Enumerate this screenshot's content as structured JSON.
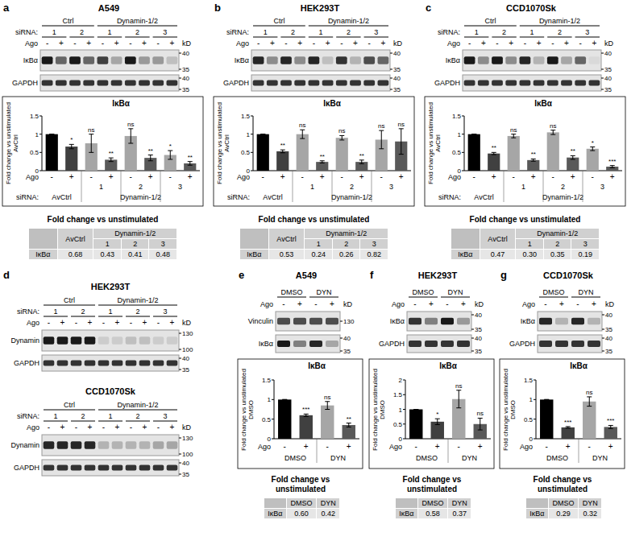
{
  "chart_data": [
    {
      "type": "bar",
      "panel": "a",
      "cell_line": "A549",
      "title": "IκBα",
      "y_label": "Fold change vs unstimulated AvCtrl",
      "category_label": "Ago",
      "group_label": "siRNA:",
      "categories": [
        "-",
        "+",
        "-",
        "+",
        "-",
        "+",
        "-",
        "+"
      ],
      "x_groups": [
        {
          "label": "AvCtrl"
        },
        {
          "label": "Dynamin-1/2",
          "sub": [
            "1",
            "2",
            "3"
          ]
        }
      ],
      "values": [
        1,
        0.66,
        0.75,
        0.3,
        0.95,
        0.35,
        0.43,
        0.2
      ],
      "errors": [
        0,
        0.06,
        0.25,
        0.05,
        0.2,
        0.08,
        0.12,
        0.05
      ],
      "annotations": [
        null,
        "*",
        "ns",
        "**",
        "ns",
        "**",
        "*",
        "**"
      ],
      "colors": [
        "#000000",
        "#404040",
        "#a6a6a6",
        "#595959",
        "#a6a6a6",
        "#595959",
        "#a6a6a6",
        "#595959"
      ],
      "ylim": [
        0,
        1.5
      ],
      "yticks": [
        0,
        0.5,
        1,
        1.5
      ],
      "blot": {
        "siRNA_label": "siRNA:",
        "groups": [
          {
            "label": "Ctrl",
            "sub": [
              "1",
              "2"
            ]
          },
          {
            "label": "Dynamin-1/2",
            "sub": [
              "1",
              "2",
              "3"
            ]
          }
        ],
        "lane_label": "Ago",
        "lanes": [
          "-",
          "+",
          "-",
          "+",
          "-",
          "+",
          "-",
          "+",
          "-",
          "+"
        ],
        "kd_unit": "kD",
        "rows": [
          {
            "label": "IκBα",
            "kd": [
              40,
              35
            ],
            "intensities": [
              0.9,
              0.6,
              0.9,
              0.6,
              0.75,
              0.35,
              0.9,
              0.4,
              0.4,
              0.25
            ]
          },
          {
            "label": "GAPDH",
            "kd": [
              40,
              35
            ],
            "intensities": [
              0.8,
              0.8,
              0.8,
              0.8,
              0.8,
              0.8,
              0.8,
              0.8,
              0.8,
              0.8
            ]
          }
        ]
      },
      "table": {
        "title": "Fold change vs unstimulated",
        "row_label": "IκBα",
        "columns": [
          {
            "label": "AvCtrl"
          },
          {
            "label": "Dynamin-1/2",
            "sub": [
              "1",
              "2",
              "3"
            ]
          }
        ],
        "values": [
          "0.68",
          "0.43",
          "0.41",
          "0.48"
        ]
      }
    },
    {
      "type": "bar",
      "panel": "b",
      "cell_line": "HEK293T",
      "title": "IκBα",
      "y_label": "Fold change vs unstimulated AvCtrl",
      "category_label": "Ago",
      "group_label": "siRNA:",
      "categories": [
        "-",
        "+",
        "-",
        "+",
        "-",
        "+",
        "-",
        "+"
      ],
      "x_groups": [
        {
          "label": "AvCtrl"
        },
        {
          "label": "Dynamin-1/2",
          "sub": [
            "1",
            "2",
            "3"
          ]
        }
      ],
      "values": [
        1,
        0.53,
        1,
        0.24,
        0.9,
        0.24,
        0.85,
        0.8
      ],
      "errors": [
        0,
        0.04,
        0.12,
        0.03,
        0.06,
        0.05,
        0.25,
        0.35
      ],
      "annotations": [
        null,
        "**",
        "ns",
        "**",
        "ns",
        "**",
        "ns",
        "ns"
      ],
      "colors": [
        "#000000",
        "#404040",
        "#a6a6a6",
        "#595959",
        "#a6a6a6",
        "#595959",
        "#a6a6a6",
        "#595959"
      ],
      "ylim": [
        0,
        1.5
      ],
      "yticks": [
        0,
        0.5,
        1,
        1.5
      ],
      "blot": {
        "siRNA_label": "siRNA:",
        "groups": [
          {
            "label": "Ctrl",
            "sub": [
              "1",
              "2"
            ]
          },
          {
            "label": "Dynamin-1/2",
            "sub": [
              "1",
              "2",
              "3"
            ]
          }
        ],
        "lane_label": "Ago",
        "lanes": [
          "-",
          "+",
          "-",
          "+",
          "-",
          "+",
          "-",
          "+",
          "-",
          "+"
        ],
        "kd_unit": "kD",
        "rows": [
          {
            "label": "IκBα",
            "kd": [
              40,
              35
            ],
            "intensities": [
              0.85,
              0.45,
              0.85,
              0.45,
              0.85,
              0.25,
              0.8,
              0.3,
              0.7,
              0.6
            ]
          },
          {
            "label": "GAPDH",
            "kd": [
              40,
              35
            ],
            "intensities": [
              0.8,
              0.8,
              0.8,
              0.8,
              0.8,
              0.8,
              0.8,
              0.8,
              0.8,
              0.8
            ]
          }
        ]
      },
      "table": {
        "title": "Fold change vs unstimulated",
        "row_label": "IκBα",
        "columns": [
          {
            "label": "AvCtrl"
          },
          {
            "label": "Dynamin-1/2",
            "sub": [
              "1",
              "2",
              "3"
            ]
          }
        ],
        "values": [
          "0.53",
          "0.24",
          "0.26",
          "0.82"
        ]
      }
    },
    {
      "type": "bar",
      "panel": "c",
      "cell_line": "CCD1070Sk",
      "title": "IκBα",
      "y_label": "Fold change vs unstimulated AvCtrl",
      "category_label": "Ago",
      "group_label": "siRNA:",
      "categories": [
        "-",
        "+",
        "-",
        "+",
        "-",
        "+",
        "-",
        "+"
      ],
      "x_groups": [
        {
          "label": "AvCtrl"
        },
        {
          "label": "Dynamin-1/2",
          "sub": [
            "1",
            "2",
            "3"
          ]
        }
      ],
      "values": [
        1,
        0.47,
        0.95,
        0.29,
        1.05,
        0.36,
        0.6,
        0.11
      ],
      "errors": [
        0,
        0.03,
        0.05,
        0.03,
        0.06,
        0.05,
        0.05,
        0.03
      ],
      "annotations": [
        null,
        "**",
        "ns",
        "**",
        "ns",
        "**",
        "*",
        "***"
      ],
      "colors": [
        "#000000",
        "#404040",
        "#a6a6a6",
        "#595959",
        "#a6a6a6",
        "#595959",
        "#a6a6a6",
        "#595959"
      ],
      "ylim": [
        0,
        1.5
      ],
      "yticks": [
        0,
        0.5,
        1,
        1.5
      ],
      "blot": {
        "siRNA_label": "siRNA:",
        "groups": [
          {
            "label": "Ctrl",
            "sub": [
              "1",
              "2"
            ]
          },
          {
            "label": "Dynamin-1/2",
            "sub": [
              "1",
              "2",
              "3"
            ]
          }
        ],
        "lane_label": "Ago",
        "lanes": [
          "-",
          "+",
          "-",
          "+",
          "-",
          "+",
          "-",
          "+",
          "-",
          "+"
        ],
        "kd_unit": "kD",
        "rows": [
          {
            "label": "IκBα",
            "kd": [
              40,
              35
            ],
            "intensities": [
              0.9,
              0.45,
              0.9,
              0.45,
              0.85,
              0.3,
              0.9,
              0.35,
              0.6,
              0.15
            ]
          },
          {
            "label": "GAPDH",
            "kd": [
              40,
              35
            ],
            "intensities": [
              0.8,
              0.8,
              0.8,
              0.8,
              0.8,
              0.8,
              0.8,
              0.8,
              0.8,
              0.8
            ]
          }
        ]
      },
      "table": {
        "title": "Fold change vs unstimulated",
        "row_label": "IκBα",
        "columns": [
          {
            "label": "AvCtrl"
          },
          {
            "label": "Dynamin-1/2",
            "sub": [
              "1",
              "2",
              "3"
            ]
          }
        ],
        "values": [
          "0.47",
          "0.30",
          "0.35",
          "0.19"
        ]
      }
    },
    {
      "type": "bar",
      "panel": "e",
      "cell_line": "A549",
      "title": "IκBα",
      "y_label": "Fold change vs unstimulated DMSO",
      "category_label": "Ago",
      "categories": [
        "-",
        "+",
        "-",
        "+"
      ],
      "x_groups": [
        {
          "label": "DMSO"
        },
        {
          "label": "DYN"
        }
      ],
      "values": [
        1,
        0.6,
        0.85,
        0.35
      ],
      "errors": [
        0,
        0.03,
        0.1,
        0.05
      ],
      "annotations": [
        null,
        "***",
        "ns",
        "**"
      ],
      "colors": [
        "#000000",
        "#404040",
        "#a6a6a6",
        "#595959"
      ],
      "ylim": [
        0,
        1.5
      ],
      "yticks": [
        0,
        0.5,
        1,
        1.5
      ],
      "blot": {
        "groups": [
          {
            "label": "DMSO"
          },
          {
            "label": "DYN"
          }
        ],
        "lane_label": "Ago",
        "lanes": [
          "-",
          "+",
          "-",
          "+"
        ],
        "kd_unit": "kD",
        "rows": [
          {
            "label": "Vinculin",
            "kd": [
              130
            ],
            "intensities": [
              0.7,
              0.7,
              0.7,
              0.7
            ]
          },
          {
            "label": "IκBα",
            "kd": [
              40,
              35
            ],
            "intensities": [
              0.9,
              0.5,
              0.85,
              0.35
            ]
          }
        ]
      },
      "table": {
        "title": "Fold change vs unstimulated",
        "row_label": "IκBα",
        "columns": [
          {
            "label": "DMSO"
          },
          {
            "label": "DYN"
          }
        ],
        "values": [
          "0.60",
          "0.42"
        ]
      }
    },
    {
      "type": "bar",
      "panel": "f",
      "cell_line": "HEK293T",
      "title": "IκBα",
      "y_label": "Fold change vs unstimulated DMSO",
      "category_label": "Ago",
      "categories": [
        "-",
        "+",
        "-",
        "+"
      ],
      "x_groups": [
        {
          "label": "DMSO"
        },
        {
          "label": "DYN"
        }
      ],
      "values": [
        1,
        0.58,
        1.35,
        0.5
      ],
      "errors": [
        0,
        0.1,
        0.3,
        0.2
      ],
      "annotations": [
        null,
        "*",
        "ns",
        "ns"
      ],
      "colors": [
        "#000000",
        "#404040",
        "#a6a6a6",
        "#595959"
      ],
      "ylim": [
        0,
        2
      ],
      "yticks": [
        0,
        0.5,
        1,
        1.5,
        2
      ],
      "blot": {
        "groups": [
          {
            "label": "DMSO"
          },
          {
            "label": "DYN"
          }
        ],
        "lane_label": "Ago",
        "lanes": [
          "-",
          "+",
          "-",
          "+"
        ],
        "kd_unit": "kD",
        "rows": [
          {
            "label": "IκBα",
            "kd": [
              40,
              35
            ],
            "intensities": [
              0.8,
              0.5,
              0.9,
              0.4
            ]
          },
          {
            "label": "GAPDH",
            "kd": [
              40,
              35
            ],
            "intensities": [
              0.8,
              0.8,
              0.8,
              0.8
            ]
          }
        ]
      },
      "table": {
        "title": "Fold change vs unstimulated",
        "row_label": "IκBα",
        "columns": [
          {
            "label": "DMSO"
          },
          {
            "label": "DYN"
          }
        ],
        "values": [
          "0.58",
          "0.37"
        ]
      }
    },
    {
      "type": "bar",
      "panel": "g",
      "cell_line": "CCD1070Sk",
      "title": "IκBα",
      "y_label": "Fold change vs unstimulated DMSO",
      "category_label": "Ago",
      "categories": [
        "-",
        "+",
        "-",
        "+"
      ],
      "x_groups": [
        {
          "label": "DMSO"
        },
        {
          "label": "DYN"
        }
      ],
      "values": [
        1,
        0.29,
        0.95,
        0.3
      ],
      "errors": [
        0,
        0.02,
        0.12,
        0.04
      ],
      "annotations": [
        null,
        "***",
        "ns",
        "***"
      ],
      "colors": [
        "#000000",
        "#404040",
        "#a6a6a6",
        "#595959"
      ],
      "ylim": [
        0,
        1.5
      ],
      "yticks": [
        0,
        0.5,
        1,
        1.5
      ],
      "blot": {
        "groups": [
          {
            "label": "DMSO"
          },
          {
            "label": "DYN"
          }
        ],
        "lane_label": "Ago",
        "lanes": [
          "-",
          "+",
          "-",
          "+"
        ],
        "kd_unit": "kD",
        "rows": [
          {
            "label": "IκBα",
            "kd": [
              40,
              35
            ],
            "intensities": [
              0.85,
              0.3,
              0.85,
              0.3
            ]
          },
          {
            "label": "GAPDH",
            "kd": [
              40,
              35
            ],
            "intensities": [
              0.8,
              0.8,
              0.8,
              0.8
            ]
          }
        ]
      },
      "table": {
        "title": "Fold change vs unstimulated",
        "row_label": "IκBα",
        "columns": [
          {
            "label": "DMSO"
          },
          {
            "label": "DYN"
          }
        ],
        "values": [
          "0.29",
          "0.32"
        ]
      }
    }
  ],
  "blot_panels": [
    {
      "panel": "d",
      "blots": [
        {
          "cell_line": "HEK293T",
          "siRNA_label": "siRNA:",
          "groups": [
            {
              "label": "Ctrl",
              "sub": [
                "1",
                "2"
              ]
            },
            {
              "label": "Dynamin-1/2",
              "sub": [
                "1",
                "2",
                "3"
              ]
            }
          ],
          "lane_label": "Ago",
          "lanes": [
            "-",
            "+",
            "-",
            "+",
            "-",
            "+",
            "-",
            "+",
            "-",
            "+"
          ],
          "kd_unit": "kD",
          "rows": [
            {
              "label": "Dynamin",
              "kd": [
                130,
                100
              ],
              "intensities": [
                0.9,
                0.9,
                0.9,
                0.9,
                0.2,
                0.2,
                0.25,
                0.25,
                0.2,
                0.2
              ]
            },
            {
              "label": "GAPDH",
              "kd": [
                40,
                35
              ],
              "intensities": [
                0.8,
                0.8,
                0.8,
                0.8,
                0.8,
                0.8,
                0.8,
                0.8,
                0.8,
                0.8
              ]
            }
          ]
        },
        {
          "cell_line": "CCD1070Sk",
          "siRNA_label": "siRNA:",
          "groups": [
            {
              "label": "Ctrl",
              "sub": [
                "1",
                "2"
              ]
            },
            {
              "label": "Dynamin-1/2",
              "sub": [
                "1",
                "2",
                "3"
              ]
            }
          ],
          "lane_label": "Ago",
          "lanes": [
            "-",
            "+",
            "-",
            "+",
            "-",
            "+",
            "-",
            "+",
            "-",
            "+"
          ],
          "kd_unit": "kD",
          "rows": [
            {
              "label": "Dynamin",
              "kd": [
                130,
                100
              ],
              "intensities": [
                0.85,
                0.85,
                0.85,
                0.85,
                0.3,
                0.3,
                0.3,
                0.3,
                0.35,
                0.35
              ]
            },
            {
              "label": "GAPDH",
              "kd": [
                40,
                35
              ],
              "intensities": [
                0.8,
                0.8,
                0.8,
                0.8,
                0.8,
                0.8,
                0.8,
                0.8,
                0.8,
                0.8
              ]
            }
          ]
        }
      ]
    }
  ]
}
